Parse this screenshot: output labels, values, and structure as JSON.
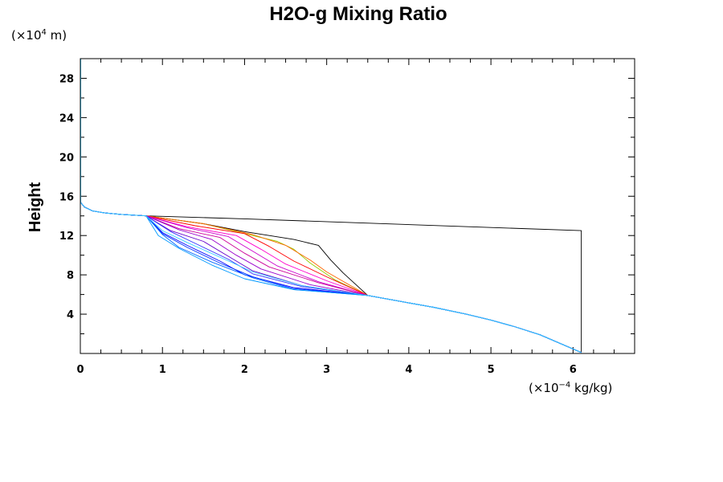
{
  "chart_data": {
    "type": "line",
    "title": "H2O-g Mixing Ratio",
    "ylabel": "Height",
    "y_unit_prefix": "(×10",
    "y_unit_exp": "4",
    "y_unit_suffix": " m)",
    "x_unit_prefix": "(×10",
    "x_unit_exp": "−4",
    "x_unit_suffix": " kg/kg)",
    "xlim": [
      0,
      6.75
    ],
    "ylim": [
      0,
      30
    ],
    "x_ticks": [
      0,
      1,
      2,
      3,
      4,
      5,
      6
    ],
    "x_tick_labels": [
      "0",
      "1",
      "2",
      "3",
      "4",
      "5",
      "6"
    ],
    "y_ticks": [
      4,
      8,
      12,
      16,
      20,
      24,
      28
    ],
    "y_tick_labels": [
      "4",
      "8",
      "12",
      "16",
      "20",
      "24",
      "28"
    ],
    "x_minor_step": 0.25,
    "y_minor_step": 2,
    "grid": false,
    "legend": "none",
    "upper_profile": {
      "x": [
        0,
        0.05,
        0.15,
        0.3,
        0.5,
        0.8
      ],
      "y": [
        15.4,
        14.9,
        14.5,
        14.3,
        14.15,
        14.0
      ]
    },
    "lower_profile": {
      "x": [
        3.5,
        3.9,
        4.3,
        4.7,
        5.0,
        5.3,
        5.6,
        5.85,
        6.1
      ],
      "y": [
        5.9,
        5.3,
        4.7,
        4.0,
        3.4,
        2.7,
        1.9,
        1.0,
        0.1
      ]
    },
    "series": [
      {
        "name": "",
        "color": "#000000",
        "values": [
          [
            0.8,
            14.0
          ],
          [
            2.0,
            13.7
          ],
          [
            6.1,
            12.5
          ],
          [
            6.1,
            0.1
          ]
        ]
      },
      {
        "name": "",
        "color": "#000000",
        "values": [
          [
            0.8,
            14.0
          ],
          [
            1.5,
            13.2
          ],
          [
            2.0,
            12.4
          ],
          [
            2.6,
            11.6
          ],
          [
            2.9,
            11.0
          ],
          [
            3.05,
            9.5
          ],
          [
            3.2,
            8.2
          ],
          [
            3.5,
            5.9
          ]
        ]
      },
      {
        "name": "",
        "color": "#99cc00",
        "values": [
          [
            0.8,
            14.0
          ],
          [
            1.5,
            13.2
          ],
          [
            2.0,
            12.2
          ],
          [
            2.4,
            11.4
          ],
          [
            2.6,
            10.6
          ],
          [
            2.8,
            9.2
          ],
          [
            3.1,
            7.5
          ],
          [
            3.5,
            5.9
          ]
        ]
      },
      {
        "name": "",
        "color": "#ff6600",
        "values": [
          [
            0.8,
            14.0
          ],
          [
            1.5,
            13.2
          ],
          [
            2.1,
            12.1
          ],
          [
            2.5,
            11.0
          ],
          [
            2.8,
            9.5
          ],
          [
            3.0,
            8.3
          ],
          [
            3.5,
            5.9
          ]
        ]
      },
      {
        "name": "",
        "color": "#ff0000",
        "values": [
          [
            0.8,
            14.0
          ],
          [
            1.4,
            13.0
          ],
          [
            2.0,
            12.2
          ],
          [
            2.3,
            10.9
          ],
          [
            2.6,
            9.4
          ],
          [
            3.0,
            7.8
          ],
          [
            3.5,
            5.9
          ]
        ]
      },
      {
        "name": "",
        "color": "#ff00cc",
        "values": [
          [
            0.8,
            14.0
          ],
          [
            1.3,
            12.9
          ],
          [
            1.9,
            12.0
          ],
          [
            2.2,
            10.6
          ],
          [
            2.5,
            9.1
          ],
          [
            3.0,
            7.4
          ],
          [
            3.5,
            5.9
          ]
        ]
      },
      {
        "name": "",
        "color": "#cc00cc",
        "values": [
          [
            0.8,
            14.0
          ],
          [
            1.3,
            12.8
          ],
          [
            1.8,
            11.9
          ],
          [
            2.1,
            10.4
          ],
          [
            2.4,
            8.9
          ],
          [
            2.9,
            7.3
          ],
          [
            3.5,
            5.9
          ]
        ]
      },
      {
        "name": "",
        "color": "#cc0099",
        "values": [
          [
            0.8,
            14.0
          ],
          [
            1.2,
            12.7
          ],
          [
            1.7,
            11.8
          ],
          [
            2.0,
            10.2
          ],
          [
            2.3,
            8.8
          ],
          [
            2.9,
            7.2
          ],
          [
            3.5,
            5.9
          ]
        ]
      },
      {
        "name": "",
        "color": "#9900cc",
        "values": [
          [
            0.8,
            14.0
          ],
          [
            1.2,
            12.6
          ],
          [
            1.6,
            11.6
          ],
          [
            1.9,
            10.0
          ],
          [
            2.2,
            8.6
          ],
          [
            2.8,
            7.0
          ],
          [
            3.5,
            5.9
          ]
        ]
      },
      {
        "name": "",
        "color": "#6600cc",
        "values": [
          [
            0.8,
            14.0
          ],
          [
            1.1,
            12.5
          ],
          [
            1.5,
            11.4
          ],
          [
            1.8,
            9.9
          ],
          [
            2.1,
            8.4
          ],
          [
            2.7,
            6.9
          ],
          [
            3.5,
            5.9
          ]
        ]
      },
      {
        "name": "",
        "color": "#3333ff",
        "values": [
          [
            0.8,
            14.0
          ],
          [
            1.1,
            12.4
          ],
          [
            1.4,
            11.2
          ],
          [
            1.8,
            9.6
          ],
          [
            2.1,
            8.1
          ],
          [
            2.7,
            6.8
          ],
          [
            3.5,
            5.9
          ]
        ]
      },
      {
        "name": "",
        "color": "#0000ff",
        "values": [
          [
            0.8,
            14.0
          ],
          [
            1.0,
            12.3
          ],
          [
            1.3,
            11.0
          ],
          [
            1.7,
            9.4
          ],
          [
            2.0,
            8.0
          ],
          [
            2.6,
            6.7
          ],
          [
            3.5,
            5.9
          ]
        ]
      },
      {
        "name": "",
        "color": "#0033ff",
        "values": [
          [
            0.8,
            14.0
          ],
          [
            1.0,
            12.2
          ],
          [
            1.3,
            10.8
          ],
          [
            1.7,
            9.2
          ],
          [
            2.1,
            7.8
          ],
          [
            2.6,
            6.6
          ],
          [
            3.5,
            5.9
          ]
        ]
      },
      {
        "name": "",
        "color": "#0066ff",
        "values": [
          [
            0.8,
            14.0
          ],
          [
            1.0,
            12.1
          ],
          [
            1.2,
            10.8
          ],
          [
            1.6,
            9.3
          ],
          [
            2.1,
            7.7
          ],
          [
            2.6,
            6.5
          ],
          [
            3.5,
            5.9
          ]
        ]
      },
      {
        "name": "",
        "color": "#0099ff",
        "values": [
          [
            0.8,
            14.0
          ],
          [
            0.95,
            12.0
          ],
          [
            1.2,
            10.7
          ],
          [
            1.6,
            9.0
          ],
          [
            2.0,
            7.6
          ],
          [
            2.6,
            6.5
          ],
          [
            3.5,
            5.9
          ]
        ]
      },
      {
        "name": "",
        "color": "#33ccff",
        "values": [
          [
            0.8,
            14.0
          ],
          [
            1.0,
            12.5
          ],
          [
            1.3,
            11.3
          ],
          [
            1.7,
            9.8
          ],
          [
            2.1,
            8.3
          ],
          [
            2.7,
            6.9
          ],
          [
            3.5,
            5.9
          ]
        ]
      }
    ]
  }
}
